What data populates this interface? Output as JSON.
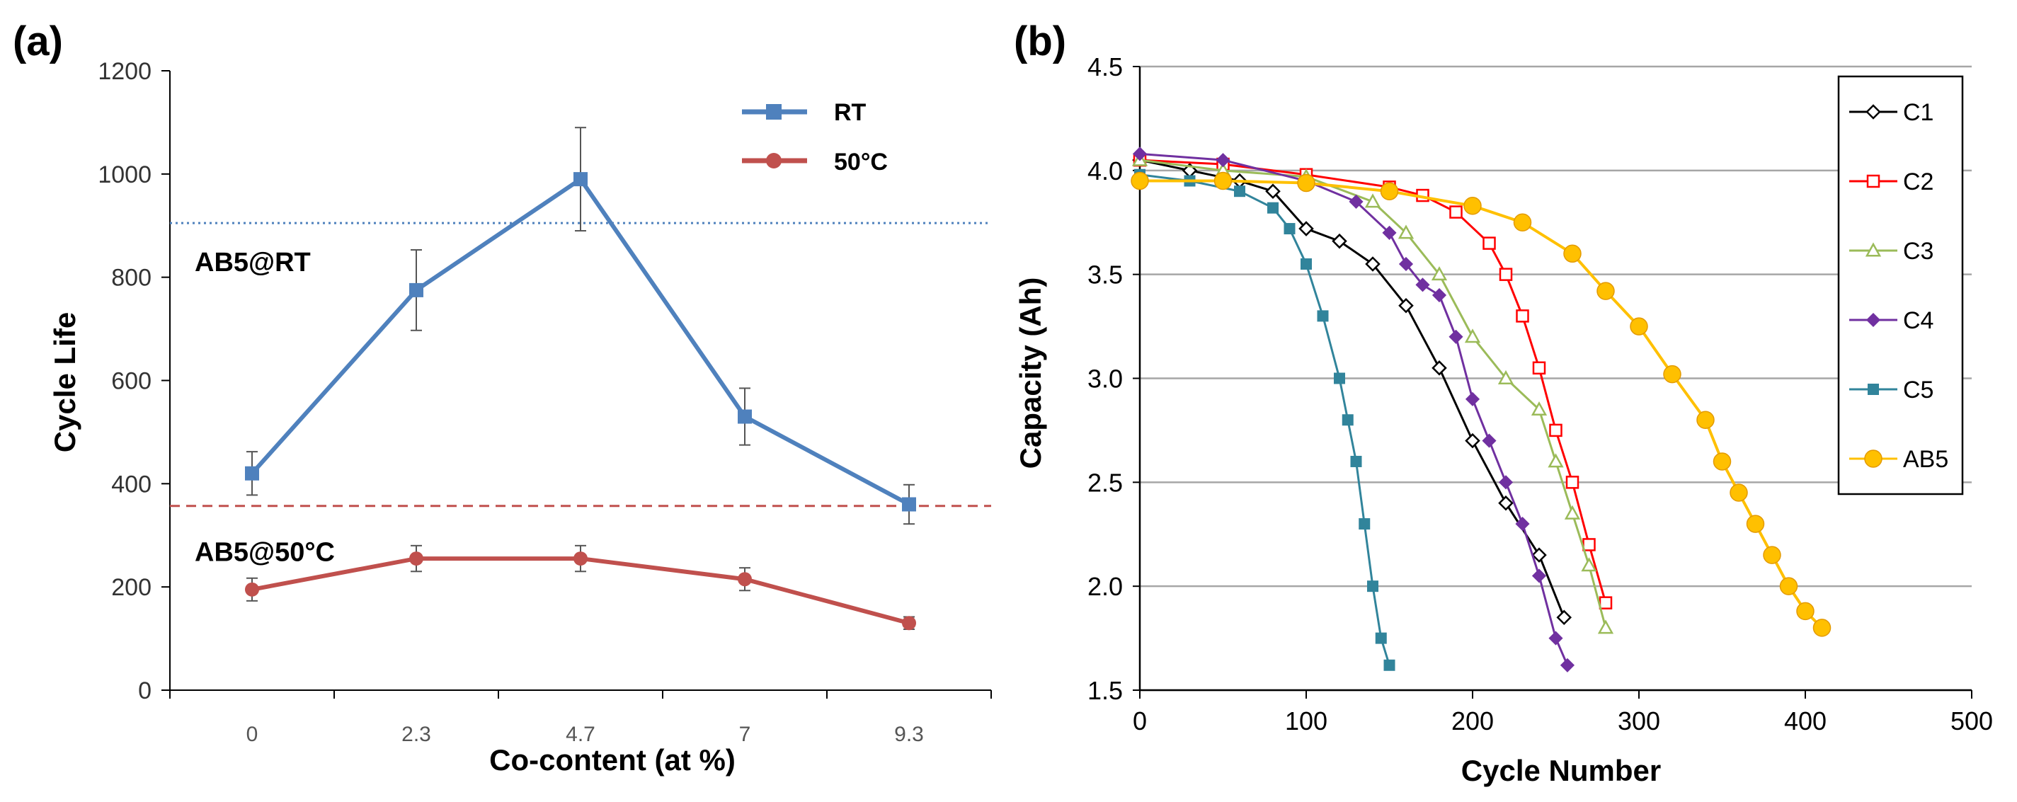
{
  "chart_data": [
    {
      "panel": "(a)",
      "type": "line",
      "xlabel": "Co-content (at %)",
      "ylabel": "Cycle Life",
      "categories": [
        "0",
        "2.3",
        "4.7",
        "7",
        "9.3"
      ],
      "ylim": [
        0,
        1200
      ],
      "yticks": [
        0,
        200,
        400,
        600,
        800,
        1000,
        1200
      ],
      "series": [
        {
          "name": "RT",
          "color": "#4f81bd",
          "marker": "square",
          "values": [
            420,
            775,
            990,
            530,
            360
          ],
          "errors": [
            42,
            78,
            100,
            55,
            38
          ]
        },
        {
          "name": "50°C",
          "color": "#c0504d",
          "marker": "circle",
          "values": [
            195,
            255,
            255,
            215,
            130
          ],
          "errors": [
            22,
            25,
            25,
            22,
            12
          ]
        }
      ],
      "reference_lines": [
        {
          "label": "AB5@RT",
          "value": 905,
          "color": "#4f81bd",
          "style": "dotted"
        },
        {
          "label": "AB5@50°C",
          "value": 357,
          "color": "#c0504d",
          "style": "dashed"
        }
      ],
      "legend_position": "top-right"
    },
    {
      "panel": "(b)",
      "type": "line",
      "xlabel": "Cycle Number",
      "ylabel": "Capacity (Ah)",
      "xlim": [
        0,
        500
      ],
      "xticks": [
        0,
        100,
        200,
        300,
        400,
        500
      ],
      "ylim": [
        1.5,
        4.5
      ],
      "yticks": [
        "1.5",
        "2.0",
        "2.5",
        "3.0",
        "3.5",
        "4.0",
        "4.5"
      ],
      "grid": true,
      "legend_position": "top-right",
      "series": [
        {
          "name": "C1",
          "color": "#000000",
          "marker": "diamond-open",
          "x": [
            0,
            30,
            60,
            80,
            100,
            120,
            140,
            160,
            180,
            200,
            220,
            240,
            255
          ],
          "y": [
            4.05,
            4.0,
            3.95,
            3.9,
            3.72,
            3.66,
            3.55,
            3.35,
            3.05,
            2.7,
            2.4,
            2.15,
            1.85
          ]
        },
        {
          "name": "C2",
          "color": "#ff0000",
          "marker": "square-open",
          "x": [
            0,
            50,
            100,
            150,
            170,
            190,
            210,
            220,
            230,
            240,
            250,
            260,
            270,
            280
          ],
          "y": [
            4.05,
            4.03,
            3.98,
            3.92,
            3.88,
            3.8,
            3.65,
            3.5,
            3.3,
            3.05,
            2.75,
            2.5,
            2.2,
            1.92
          ]
        },
        {
          "name": "C3",
          "color": "#9bbb59",
          "marker": "triangle-open",
          "x": [
            0,
            50,
            100,
            140,
            160,
            180,
            200,
            220,
            240,
            250,
            260,
            270,
            280
          ],
          "y": [
            4.05,
            4.0,
            3.97,
            3.85,
            3.7,
            3.5,
            3.2,
            3.0,
            2.85,
            2.6,
            2.35,
            2.1,
            1.8
          ]
        },
        {
          "name": "C4",
          "color": "#7030a0",
          "marker": "diamond",
          "x": [
            0,
            50,
            100,
            130,
            150,
            160,
            170,
            180,
            190,
            200,
            210,
            220,
            230,
            240,
            250,
            257
          ],
          "y": [
            4.08,
            4.05,
            3.95,
            3.85,
            3.7,
            3.55,
            3.45,
            3.4,
            3.2,
            2.9,
            2.7,
            2.5,
            2.3,
            2.05,
            1.75,
            1.62
          ]
        },
        {
          "name": "C5",
          "color": "#31849b",
          "marker": "square",
          "x": [
            0,
            30,
            60,
            80,
            90,
            100,
            110,
            120,
            125,
            130,
            135,
            140,
            145,
            150
          ],
          "y": [
            3.98,
            3.95,
            3.9,
            3.82,
            3.72,
            3.55,
            3.3,
            3.0,
            2.8,
            2.6,
            2.3,
            2.0,
            1.75,
            1.62
          ]
        },
        {
          "name": "AB5",
          "color": "#ffc000",
          "marker": "circle",
          "x": [
            0,
            50,
            100,
            150,
            200,
            230,
            260,
            280,
            300,
            320,
            340,
            350,
            360,
            370,
            380,
            390,
            400,
            410
          ],
          "y": [
            3.95,
            3.95,
            3.94,
            3.9,
            3.83,
            3.75,
            3.6,
            3.42,
            3.25,
            3.02,
            2.8,
            2.6,
            2.45,
            2.3,
            2.15,
            2.0,
            1.88,
            1.8
          ]
        }
      ]
    }
  ]
}
